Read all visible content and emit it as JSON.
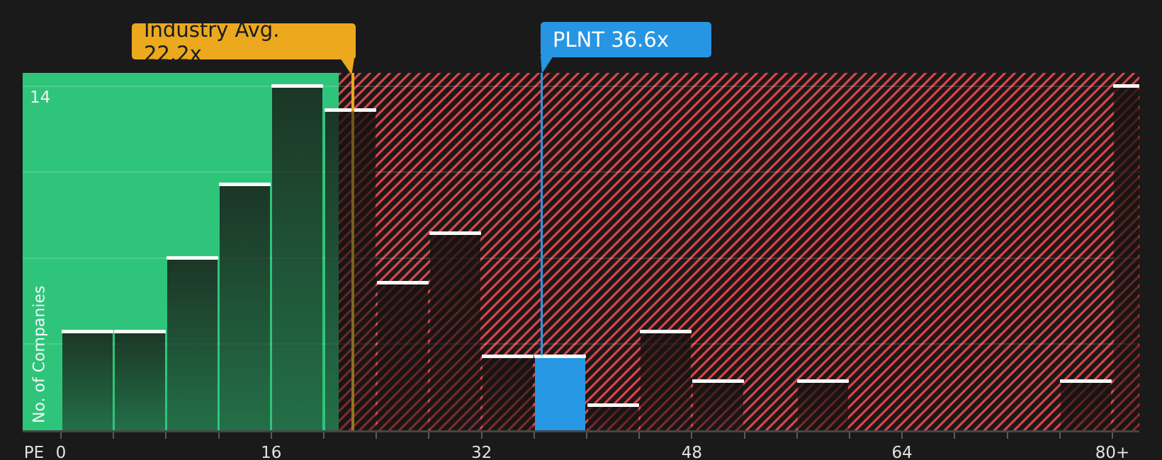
{
  "chart_data": {
    "type": "bar",
    "subtype": "histogram",
    "xlabel": "PE",
    "ylabel": "No. of Companies",
    "y_max": 14,
    "y_max_label": "14",
    "y_gridline_counts": [
      3.5,
      7,
      10.5,
      14
    ],
    "x_tick_step": 4,
    "x_tick_values": [
      0,
      16,
      32,
      48,
      64,
      80
    ],
    "x_tick_labels": [
      "0",
      "16",
      "32",
      "48",
      "64",
      "80+"
    ],
    "bin_width_pe": 4,
    "bins": [
      {
        "from": 0,
        "to": 4,
        "count": 4
      },
      {
        "from": 4,
        "to": 8,
        "count": 4
      },
      {
        "from": 8,
        "to": 12,
        "count": 7
      },
      {
        "from": 12,
        "to": 16,
        "count": 10
      },
      {
        "from": 16,
        "to": 20,
        "count": 14
      },
      {
        "from": 20,
        "to": 24,
        "count": 13
      },
      {
        "from": 24,
        "to": 28,
        "count": 6
      },
      {
        "from": 28,
        "to": 32,
        "count": 8
      },
      {
        "from": 32,
        "to": 36,
        "count": 3
      },
      {
        "from": 36,
        "to": 40,
        "count": 3
      },
      {
        "from": 40,
        "to": 44,
        "count": 1
      },
      {
        "from": 44,
        "to": 48,
        "count": 4
      },
      {
        "from": 48,
        "to": 52,
        "count": 2
      },
      {
        "from": 52,
        "to": 56,
        "count": 0
      },
      {
        "from": 56,
        "to": 60,
        "count": 2
      },
      {
        "from": 60,
        "to": 64,
        "count": 0
      },
      {
        "from": 64,
        "to": 68,
        "count": 0
      },
      {
        "from": 68,
        "to": 72,
        "count": 0
      },
      {
        "from": 72,
        "to": 76,
        "count": 0
      },
      {
        "from": 76,
        "to": 80,
        "count": 2
      },
      {
        "from": 80,
        "to": null,
        "count": 14,
        "label": "80+"
      }
    ],
    "highlight_bin_from": 36,
    "zones": {
      "green_zone_pe_max": 21.3,
      "hatched_above_green": true
    },
    "annotations": [
      {
        "id": "industry_avg",
        "label": "Industry Avg. 22.2x",
        "value": 22.2
      },
      {
        "id": "plnt",
        "label": "PLNT 36.6x",
        "value": 36.6
      }
    ]
  },
  "colors": {
    "background": "#1A1A1B",
    "green_zone": "#2EC57B",
    "hatch_stripe": "#E8484C",
    "hatch_background": "#1D1818",
    "highlight_blue": "#2697E2",
    "industry_orange": "#ECA91E",
    "industry_line_gold": "#8A6A1C",
    "marker_white": "#FAFAFA",
    "axis_text": "#E3E3E3"
  }
}
